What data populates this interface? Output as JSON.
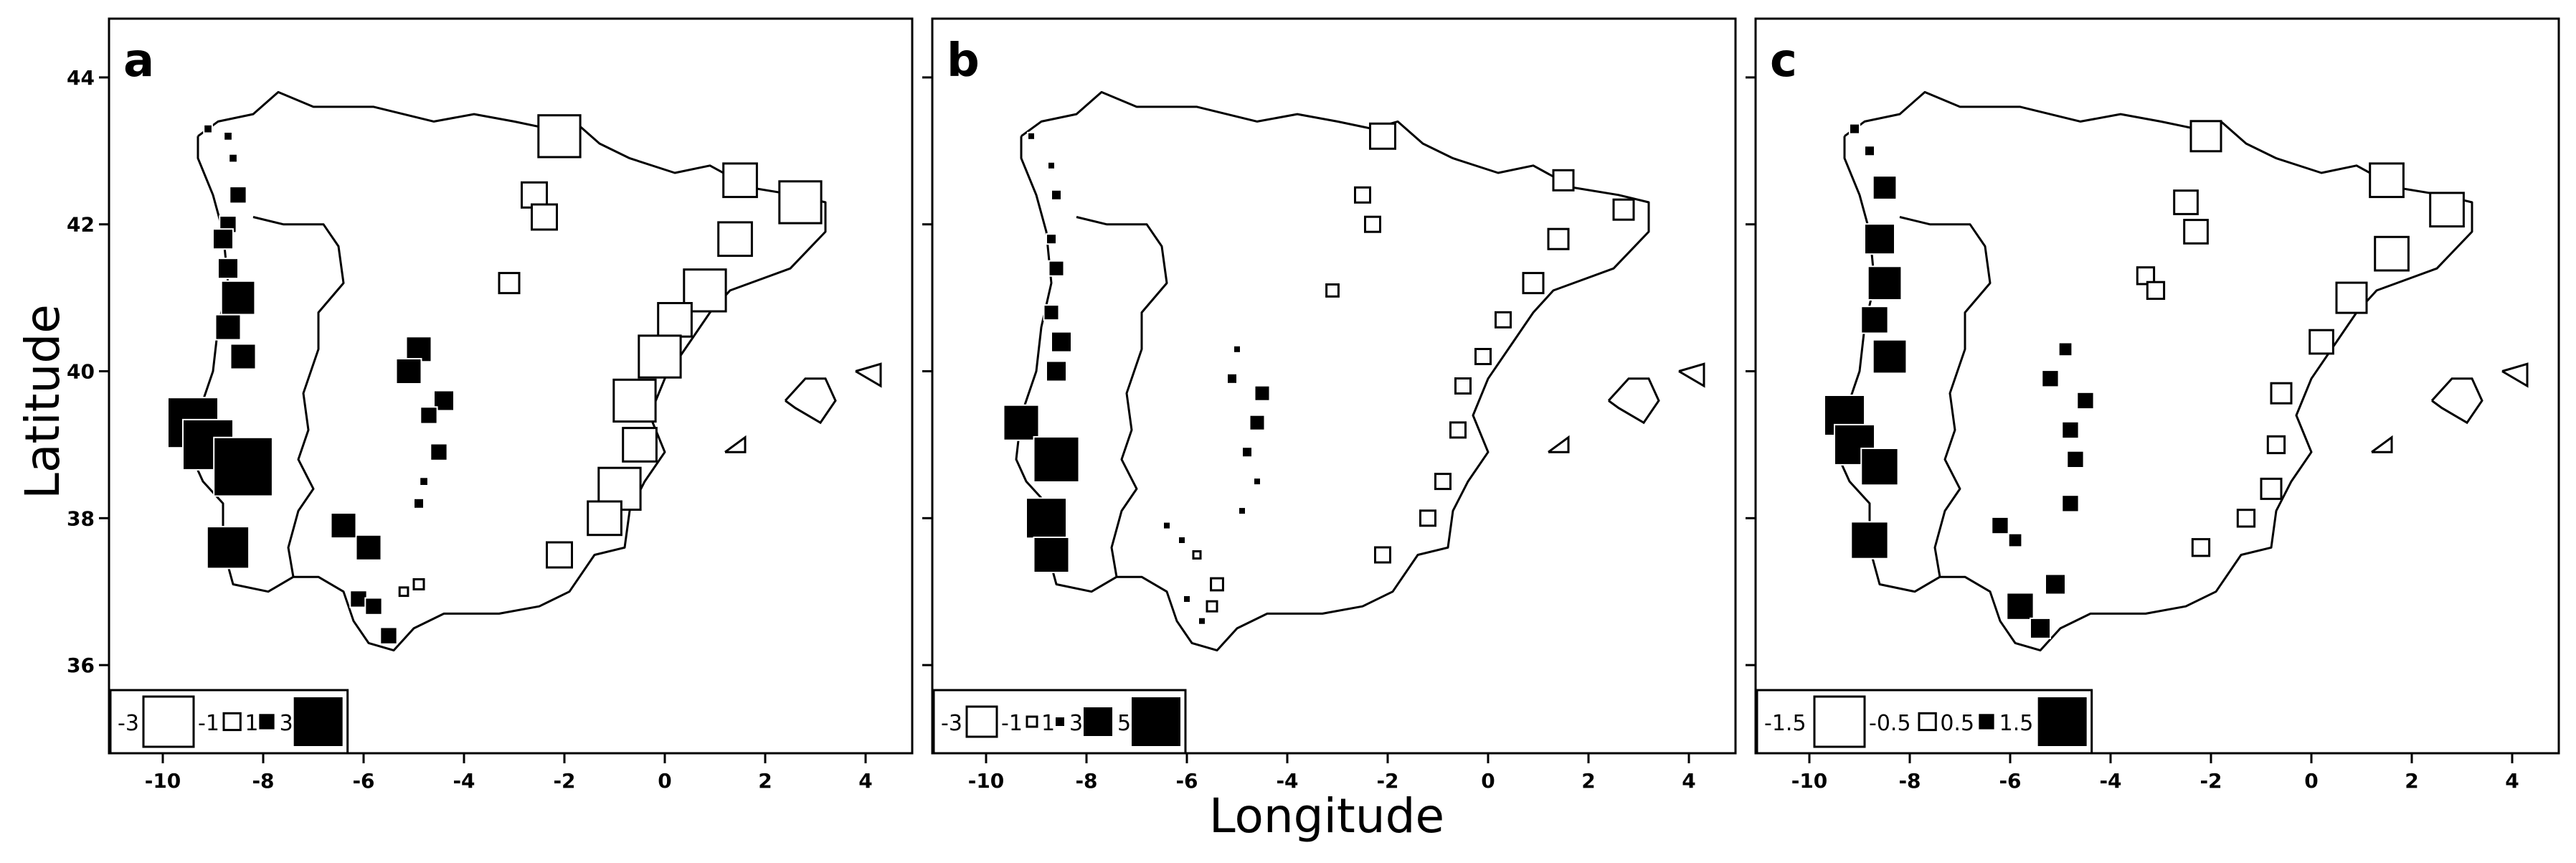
{
  "figure": {
    "xlabel": "Longitude",
    "ylabel": "Latitude"
  },
  "chart_data": [
    {
      "panel": "a",
      "type": "scatter",
      "marker": "square",
      "marker_encoding": "size proportional to |value|; black = positive, white = negative",
      "xlim": [
        -10.5,
        4.5
      ],
      "ylim": [
        34.8,
        44.8
      ],
      "xticks": [
        -10,
        -8,
        -6,
        -4,
        -2,
        0,
        2,
        4
      ],
      "yticks": [
        36,
        38,
        40,
        42,
        44
      ],
      "legend": {
        "placement": "bottom-left",
        "values": [
          -3,
          -1,
          1,
          3
        ],
        "labels": [
          "-3",
          "-1",
          "1",
          "3"
        ]
      },
      "points": [
        {
          "x": -9.1,
          "y": 43.3,
          "value": 0.5
        },
        {
          "x": -8.7,
          "y": 43.2,
          "value": 0.5
        },
        {
          "x": -8.6,
          "y": 42.9,
          "value": 0.5
        },
        {
          "x": -8.5,
          "y": 42.4,
          "value": 1.0
        },
        {
          "x": -8.7,
          "y": 42.0,
          "value": 1.0
        },
        {
          "x": -8.8,
          "y": 41.8,
          "value": 1.2
        },
        {
          "x": -8.7,
          "y": 41.4,
          "value": 1.2
        },
        {
          "x": -8.5,
          "y": 41.0,
          "value": 2.0
        },
        {
          "x": -8.7,
          "y": 40.6,
          "value": 1.5
        },
        {
          "x": -8.4,
          "y": 40.2,
          "value": 1.5
        },
        {
          "x": -9.4,
          "y": 39.3,
          "value": 3.0
        },
        {
          "x": -9.1,
          "y": 39.0,
          "value": 3.0
        },
        {
          "x": -8.4,
          "y": 38.7,
          "value": 3.5
        },
        {
          "x": -8.7,
          "y": 37.6,
          "value": 2.5
        },
        {
          "x": -4.9,
          "y": 40.3,
          "value": 1.5
        },
        {
          "x": -5.1,
          "y": 40.0,
          "value": 1.5
        },
        {
          "x": -4.4,
          "y": 39.6,
          "value": 1.2
        },
        {
          "x": -4.7,
          "y": 39.4,
          "value": 1.0
        },
        {
          "x": -4.5,
          "y": 38.9,
          "value": 1.0
        },
        {
          "x": -4.8,
          "y": 38.5,
          "value": 0.5
        },
        {
          "x": -4.9,
          "y": 38.2,
          "value": 0.6
        },
        {
          "x": -6.4,
          "y": 37.9,
          "value": 1.5
        },
        {
          "x": -5.9,
          "y": 37.6,
          "value": 1.5
        },
        {
          "x": -6.1,
          "y": 36.9,
          "value": 1.0
        },
        {
          "x": -5.8,
          "y": 36.8,
          "value": 1.0
        },
        {
          "x": -5.5,
          "y": 36.4,
          "value": 1.0
        },
        {
          "x": -5.2,
          "y": 37.0,
          "value": -0.5
        },
        {
          "x": -4.9,
          "y": 37.1,
          "value": -0.6
        },
        {
          "x": -2.1,
          "y": 43.2,
          "value": -2.5
        },
        {
          "x": -2.6,
          "y": 42.4,
          "value": -1.5
        },
        {
          "x": -2.4,
          "y": 42.1,
          "value": -1.5
        },
        {
          "x": -3.1,
          "y": 41.2,
          "value": -1.2
        },
        {
          "x": 1.5,
          "y": 42.6,
          "value": -2.0
        },
        {
          "x": 2.7,
          "y": 42.3,
          "value": -2.5
        },
        {
          "x": 1.4,
          "y": 41.8,
          "value": -2.0
        },
        {
          "x": 0.8,
          "y": 41.1,
          "value": -2.5
        },
        {
          "x": 0.2,
          "y": 40.7,
          "value": -2.0
        },
        {
          "x": -0.1,
          "y": 40.2,
          "value": -2.5
        },
        {
          "x": -0.6,
          "y": 39.6,
          "value": -2.5
        },
        {
          "x": -0.5,
          "y": 39.0,
          "value": -2.0
        },
        {
          "x": -0.9,
          "y": 38.4,
          "value": -2.5
        },
        {
          "x": -1.2,
          "y": 38.0,
          "value": -2.0
        },
        {
          "x": -2.1,
          "y": 37.5,
          "value": -1.5
        }
      ]
    },
    {
      "panel": "b",
      "type": "scatter",
      "marker": "square",
      "marker_encoding": "size proportional to |value|; black = positive, white = negative",
      "xlim": [
        -10.5,
        4.5
      ],
      "ylim": [
        34.8,
        44.8
      ],
      "xticks": [
        -10,
        -8,
        -6,
        -4,
        -2,
        0,
        2,
        4
      ],
      "yticks": [
        36,
        38,
        40,
        42,
        44
      ],
      "legend": {
        "placement": "bottom-left",
        "values": [
          -3,
          -1,
          1,
          3,
          5
        ],
        "labels": [
          "-3",
          "-1",
          "1",
          "3",
          "5"
        ]
      },
      "points": [
        {
          "x": -9.1,
          "y": 43.2,
          "value": 0.5
        },
        {
          "x": -8.7,
          "y": 42.8,
          "value": 0.5
        },
        {
          "x": -8.6,
          "y": 42.4,
          "value": 1.0
        },
        {
          "x": -8.7,
          "y": 41.8,
          "value": 1.0
        },
        {
          "x": -8.6,
          "y": 41.4,
          "value": 1.5
        },
        {
          "x": -8.7,
          "y": 40.8,
          "value": 1.5
        },
        {
          "x": -8.5,
          "y": 40.4,
          "value": 2.0
        },
        {
          "x": -8.6,
          "y": 40.0,
          "value": 2.0
        },
        {
          "x": -9.3,
          "y": 39.3,
          "value": 3.5
        },
        {
          "x": -8.6,
          "y": 38.8,
          "value": 4.5
        },
        {
          "x": -8.8,
          "y": 38.0,
          "value": 4.0
        },
        {
          "x": -8.7,
          "y": 37.5,
          "value": 3.5
        },
        {
          "x": -5.0,
          "y": 40.3,
          "value": 0.6
        },
        {
          "x": -5.1,
          "y": 39.9,
          "value": 1.0
        },
        {
          "x": -4.5,
          "y": 39.7,
          "value": 1.5
        },
        {
          "x": -4.6,
          "y": 39.3,
          "value": 1.5
        },
        {
          "x": -4.8,
          "y": 38.9,
          "value": 1.0
        },
        {
          "x": -4.6,
          "y": 38.5,
          "value": 0.6
        },
        {
          "x": -4.9,
          "y": 38.1,
          "value": 0.5
        },
        {
          "x": -6.4,
          "y": 37.9,
          "value": 0.6
        },
        {
          "x": -6.1,
          "y": 37.7,
          "value": 0.6
        },
        {
          "x": -6.0,
          "y": 36.9,
          "value": 0.5
        },
        {
          "x": -5.7,
          "y": 36.6,
          "value": 0.5
        },
        {
          "x": -5.4,
          "y": 37.1,
          "value": -1.2
        },
        {
          "x": -5.5,
          "y": 36.8,
          "value": -1.0
        },
        {
          "x": -5.8,
          "y": 37.5,
          "value": -0.6
        },
        {
          "x": -2.1,
          "y": 43.2,
          "value": -2.5
        },
        {
          "x": -2.5,
          "y": 42.4,
          "value": -1.5
        },
        {
          "x": -2.3,
          "y": 42.0,
          "value": -1.5
        },
        {
          "x": -3.1,
          "y": 41.1,
          "value": -1.2
        },
        {
          "x": 1.5,
          "y": 42.6,
          "value": -2.0
        },
        {
          "x": 2.7,
          "y": 42.2,
          "value": -2.0
        },
        {
          "x": 1.4,
          "y": 41.8,
          "value": -2.0
        },
        {
          "x": 0.9,
          "y": 41.2,
          "value": -2.0
        },
        {
          "x": 0.3,
          "y": 40.7,
          "value": -1.5
        },
        {
          "x": -0.1,
          "y": 40.2,
          "value": -1.5
        },
        {
          "x": -0.5,
          "y": 39.8,
          "value": -1.5
        },
        {
          "x": -0.6,
          "y": 39.2,
          "value": -1.5
        },
        {
          "x": -0.9,
          "y": 38.5,
          "value": -1.5
        },
        {
          "x": -1.2,
          "y": 38.0,
          "value": -1.5
        },
        {
          "x": -2.1,
          "y": 37.5,
          "value": -1.5
        }
      ]
    },
    {
      "panel": "c",
      "type": "scatter",
      "marker": "square",
      "marker_encoding": "size proportional to |value|; black = positive, white = negative",
      "xlim": [
        -10.5,
        4.5
      ],
      "ylim": [
        34.8,
        44.8
      ],
      "xticks": [
        -10,
        -8,
        -6,
        -4,
        -2,
        0,
        2,
        4
      ],
      "yticks": [
        36,
        38,
        40,
        42,
        44
      ],
      "legend": {
        "placement": "bottom-left",
        "values": [
          -1.5,
          -0.5,
          0.5,
          1.5
        ],
        "labels": [
          "-1.5",
          "-0.5",
          "0.5",
          "1.5"
        ]
      },
      "points": [
        {
          "x": -9.1,
          "y": 43.3,
          "value": 0.3
        },
        {
          "x": -8.8,
          "y": 43.0,
          "value": 0.3
        },
        {
          "x": -8.5,
          "y": 42.5,
          "value": 0.7
        },
        {
          "x": -8.6,
          "y": 41.8,
          "value": 0.9
        },
        {
          "x": -8.5,
          "y": 41.2,
          "value": 1.0
        },
        {
          "x": -8.7,
          "y": 40.7,
          "value": 0.8
        },
        {
          "x": -8.4,
          "y": 40.2,
          "value": 1.0
        },
        {
          "x": -9.3,
          "y": 39.4,
          "value": 1.2
        },
        {
          "x": -9.1,
          "y": 39.0,
          "value": 1.2
        },
        {
          "x": -8.6,
          "y": 38.7,
          "value": 1.1
        },
        {
          "x": -8.8,
          "y": 37.7,
          "value": 1.1
        },
        {
          "x": -4.9,
          "y": 40.3,
          "value": 0.4
        },
        {
          "x": -5.2,
          "y": 39.9,
          "value": 0.5
        },
        {
          "x": -4.5,
          "y": 39.6,
          "value": 0.5
        },
        {
          "x": -4.8,
          "y": 39.2,
          "value": 0.5
        },
        {
          "x": -4.7,
          "y": 38.8,
          "value": 0.5
        },
        {
          "x": -4.8,
          "y": 38.2,
          "value": 0.5
        },
        {
          "x": -6.2,
          "y": 37.9,
          "value": 0.5
        },
        {
          "x": -5.9,
          "y": 37.7,
          "value": 0.4
        },
        {
          "x": -5.1,
          "y": 37.1,
          "value": 0.6
        },
        {
          "x": -5.8,
          "y": 36.8,
          "value": 0.8
        },
        {
          "x": -5.4,
          "y": 36.5,
          "value": 0.6
        },
        {
          "x": -2.1,
          "y": 43.2,
          "value": -0.9
        },
        {
          "x": -2.5,
          "y": 42.3,
          "value": -0.7
        },
        {
          "x": -2.3,
          "y": 41.9,
          "value": -0.7
        },
        {
          "x": -3.3,
          "y": 41.3,
          "value": -0.5
        },
        {
          "x": -3.1,
          "y": 41.1,
          "value": -0.5
        },
        {
          "x": 1.5,
          "y": 42.6,
          "value": -1.0
        },
        {
          "x": 2.7,
          "y": 42.2,
          "value": -1.0
        },
        {
          "x": 1.6,
          "y": 41.6,
          "value": -1.0
        },
        {
          "x": 0.8,
          "y": 41.0,
          "value": -0.9
        },
        {
          "x": 0.2,
          "y": 40.4,
          "value": -0.7
        },
        {
          "x": -0.6,
          "y": 39.7,
          "value": -0.6
        },
        {
          "x": -0.7,
          "y": 39.0,
          "value": -0.5
        },
        {
          "x": -0.8,
          "y": 38.4,
          "value": -0.6
        },
        {
          "x": -1.3,
          "y": 38.0,
          "value": -0.5
        },
        {
          "x": -2.2,
          "y": 37.6,
          "value": -0.5
        }
      ]
    }
  ]
}
